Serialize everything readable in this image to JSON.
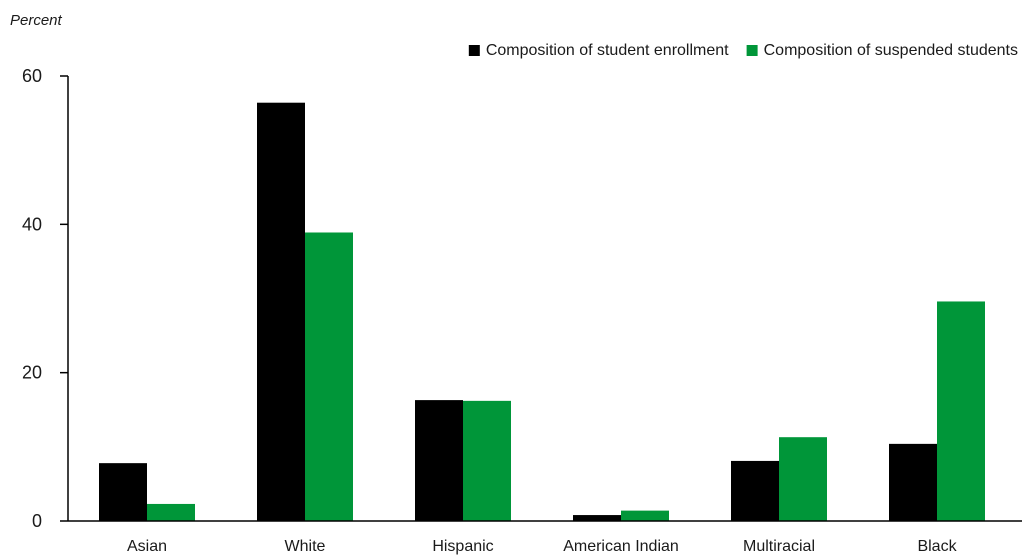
{
  "chart_data": {
    "type": "bar",
    "title": "",
    "xlabel": "",
    "ylabel": "Percent",
    "ylim": [
      0,
      60
    ],
    "yticks": [
      0,
      20,
      40,
      60
    ],
    "grid": false,
    "legend_position": "top-right",
    "categories": [
      "Asian",
      "White",
      "Hispanic",
      "American Indian",
      "Multiracial",
      "Black"
    ],
    "series": [
      {
        "name": "Composition of student enrollment",
        "color": "#000000",
        "values": [
          7.8,
          56.4,
          16.3,
          0.8,
          8.1,
          10.4
        ]
      },
      {
        "name": "Composition of suspended students",
        "color": "#009639",
        "values": [
          2.3,
          38.9,
          16.2,
          1.4,
          11.3,
          29.6
        ]
      }
    ]
  }
}
